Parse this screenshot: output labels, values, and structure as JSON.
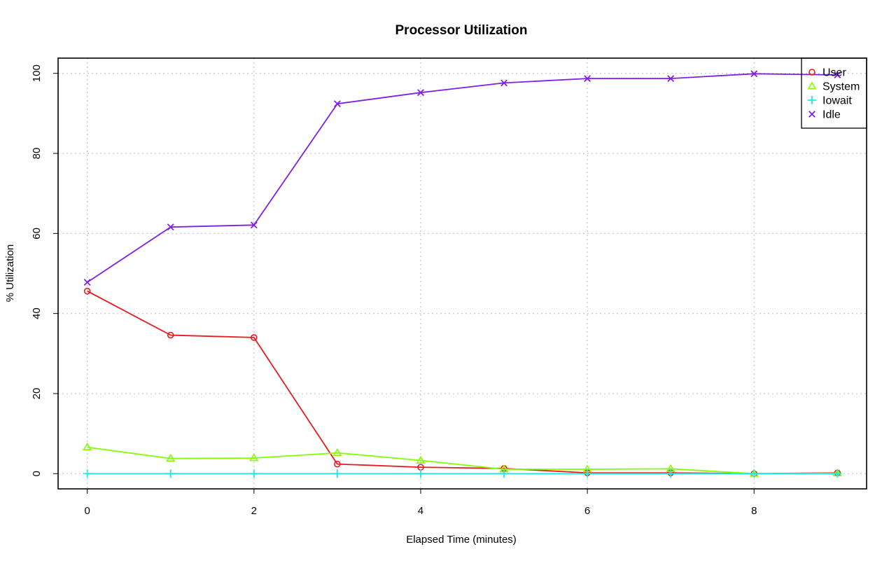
{
  "chart_data": {
    "type": "line",
    "title": "Processor Utilization",
    "xlabel": "Elapsed Time (minutes)",
    "ylabel": "% Utilization",
    "xlim": [
      -0.35,
      9.35
    ],
    "ylim": [
      -3.8,
      103.8
    ],
    "xticks": [
      0,
      2,
      4,
      6,
      8
    ],
    "yticks": [
      0,
      20,
      40,
      60,
      80,
      100
    ],
    "grid": true,
    "legend_position": "top-right",
    "x": [
      0,
      1,
      2,
      3,
      4,
      5,
      6,
      7,
      8,
      9
    ],
    "series": [
      {
        "name": "User",
        "color": "#e8191f",
        "marker": "circle",
        "values": [
          45.6,
          34.6,
          34.0,
          2.4,
          1.6,
          1.3,
          0.2,
          0.2,
          0.0,
          0.2
        ]
      },
      {
        "name": "System",
        "color": "#80ff00",
        "marker": "triangle",
        "values": [
          6.6,
          3.8,
          3.9,
          5.2,
          3.3,
          1.1,
          1.1,
          1.2,
          0.0,
          0.1
        ]
      },
      {
        "name": "Iowait",
        "color": "#1fe9e9",
        "marker": "plus",
        "values": [
          0.0,
          0.0,
          0.0,
          0.0,
          0.0,
          0.0,
          0.0,
          0.0,
          0.0,
          0.0
        ]
      },
      {
        "name": "Idle",
        "color": "#7f1fe6",
        "marker": "x",
        "values": [
          47.8,
          61.6,
          62.1,
          92.4,
          95.2,
          97.6,
          98.7,
          98.7,
          99.9,
          99.6
        ]
      }
    ]
  }
}
